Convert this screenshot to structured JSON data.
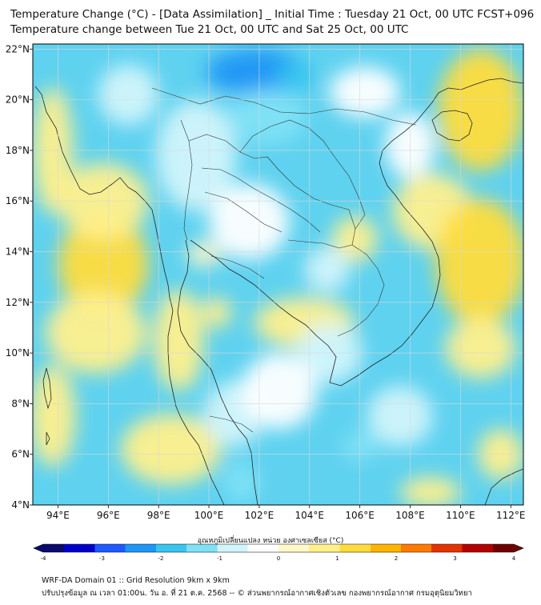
{
  "header": {
    "title_line1": "Temperature Change (°C) - [Data Assimilation] _ Initial Time : Tuesday 21 Oct, 00 UTC FCST+096",
    "title_line2": "Temperature change between Tue 21 Oct, 00 UTC and Sat 25 Oct, 00 UTC"
  },
  "map": {
    "lon_range": [
      93,
      112.5
    ],
    "lat_range": [
      4,
      22.2
    ],
    "lon_ticks": [
      94,
      96,
      98,
      100,
      102,
      104,
      106,
      108,
      110,
      112
    ],
    "lon_tick_labels": [
      "94°E",
      "96°E",
      "98°E",
      "100°E",
      "102°E",
      "104°E",
      "106°E",
      "108°E",
      "110°E",
      "112°E"
    ],
    "lat_ticks": [
      4,
      6,
      8,
      10,
      12,
      14,
      16,
      18,
      20,
      22
    ],
    "lat_tick_labels": [
      "4°N",
      "6°N",
      "8°N",
      "10°N",
      "12°N",
      "14°N",
      "16°N",
      "18°N",
      "20°N",
      "22°N"
    ],
    "background_color": "#5fd2f0",
    "gridlines": true
  },
  "field_blobs": [
    {
      "lon": 101.9,
      "lat": 21.1,
      "rx": 2.0,
      "ry": 0.9,
      "value": -2.2
    },
    {
      "lon": 103.5,
      "lat": 20.9,
      "rx": 0.8,
      "ry": 0.6,
      "value": -1.8
    },
    {
      "lon": 102.3,
      "lat": 19.3,
      "rx": 1.6,
      "ry": 1.1,
      "value": -1.3
    },
    {
      "lon": 95.8,
      "lat": 13.5,
      "rx": 1.8,
      "ry": 2.0,
      "value": 1.4
    },
    {
      "lon": 95.8,
      "lat": 16.0,
      "rx": 1.8,
      "ry": 1.5,
      "value": 0.8
    },
    {
      "lon": 95.5,
      "lat": 10.8,
      "rx": 2.0,
      "ry": 1.6,
      "value": 0.7
    },
    {
      "lon": 93.8,
      "lat": 18.0,
      "rx": 0.8,
      "ry": 2.5,
      "value": 0.6
    },
    {
      "lon": 110.8,
      "lat": 19.6,
      "rx": 1.7,
      "ry": 2.4,
      "value": 1.2
    },
    {
      "lon": 108.9,
      "lat": 15.6,
      "rx": 1.6,
      "ry": 1.5,
      "value": 0.8
    },
    {
      "lon": 110.8,
      "lat": 13.6,
      "rx": 1.8,
      "ry": 2.5,
      "value": 1.0
    },
    {
      "lon": 105.8,
      "lat": 14.5,
      "rx": 0.9,
      "ry": 0.9,
      "value": 0.9
    },
    {
      "lon": 103.8,
      "lat": 11.2,
      "rx": 2.0,
      "ry": 1.0,
      "value": 0.5
    },
    {
      "lon": 98.8,
      "lat": 10.5,
      "rx": 1.0,
      "ry": 2.0,
      "value": 0.6
    },
    {
      "lon": 100.3,
      "lat": 11.6,
      "rx": 0.6,
      "ry": 0.6,
      "value": 0.6
    },
    {
      "lon": 99.8,
      "lat": 13.9,
      "rx": 0.7,
      "ry": 0.5,
      "value": 0.4
    },
    {
      "lon": 110.8,
      "lat": 10.2,
      "rx": 1.4,
      "ry": 1.2,
      "value": 0.7
    },
    {
      "lon": 98.5,
      "lat": 6.2,
      "rx": 2.0,
      "ry": 1.4,
      "value": 0.6
    },
    {
      "lon": 93.8,
      "lat": 7.5,
      "rx": 0.9,
      "ry": 2.0,
      "value": 0.6
    },
    {
      "lon": 108.8,
      "lat": 4.5,
      "rx": 1.2,
      "ry": 0.6,
      "value": 0.9
    },
    {
      "lon": 111.6,
      "lat": 6.0,
      "rx": 0.9,
      "ry": 1.0,
      "value": 0.6
    },
    {
      "lon": 101.3,
      "lat": 4.9,
      "rx": 0.7,
      "ry": 0.8,
      "value": -1.3
    },
    {
      "lon": 106.0,
      "lat": 6.3,
      "rx": 0.7,
      "ry": 0.6,
      "value": -1.2
    },
    {
      "lon": 101.0,
      "lat": 7.6,
      "rx": 1.2,
      "ry": 1.3,
      "value": -0.7
    },
    {
      "lon": 104.8,
      "lat": 10.0,
      "rx": 1.3,
      "ry": 1.2,
      "value": -0.8
    },
    {
      "lon": 107.6,
      "lat": 7.5,
      "rx": 1.3,
      "ry": 1.2,
      "value": -0.8
    },
    {
      "lon": 99.5,
      "lat": 17.8,
      "rx": 1.6,
      "ry": 2.2,
      "value": -0.6
    },
    {
      "lon": 96.8,
      "lat": 20.2,
      "rx": 1.2,
      "ry": 1.2,
      "value": -0.6
    },
    {
      "lon": 101.6,
      "lat": 15.2,
      "rx": 1.6,
      "ry": 1.5,
      "value": -0.5
    },
    {
      "lon": 104.7,
      "lat": 13.3,
      "rx": 0.9,
      "ry": 0.9,
      "value": -0.6
    },
    {
      "lon": 108.0,
      "lat": 18.2,
      "rx": 1.0,
      "ry": 1.3,
      "value": -0.5
    },
    {
      "lon": 106.2,
      "lat": 20.3,
      "rx": 1.4,
      "ry": 1.0,
      "value": -0.5
    },
    {
      "lon": 102.8,
      "lat": 8.5,
      "rx": 1.5,
      "ry": 1.5,
      "value": -0.5
    }
  ],
  "colorbar": {
    "title": "อุณหภูมิเปลี่ยนแปลง หน่วย องศาเซลเซียส (°C)",
    "vmin": -4,
    "vmax": 4,
    "tick_values": [
      -4,
      -3,
      -2,
      -1,
      0,
      1,
      2,
      3,
      4
    ],
    "tick_labels": [
      "-4",
      "-3",
      "-2",
      "-1",
      "0",
      "1",
      "2",
      "3",
      "4"
    ],
    "colors": [
      "#0a0a6e",
      "#0000cd",
      "#1e5aff",
      "#1e96f5",
      "#38c6f0",
      "#7fe1f5",
      "#d2f4fb",
      "#ffffff",
      "#fff8c8",
      "#fff08c",
      "#ffdc3c",
      "#ffb400",
      "#ff7a00",
      "#e63200",
      "#b40000",
      "#6e0000"
    ]
  },
  "footer": {
    "line1": "WRF-DA Domain 01 :: Grid Resolution 9km x 9km",
    "line2": "ปรับปรุงข้อมูล ณ เวลา 01:00น. วัน อ. ที่ 21 ต.ค. 2568 -- © ส่วนพยากรณ์อากาศเชิงตัวเลข กองพยากรณ์อากาศ กรมอุตุนิยมวิทยา"
  }
}
